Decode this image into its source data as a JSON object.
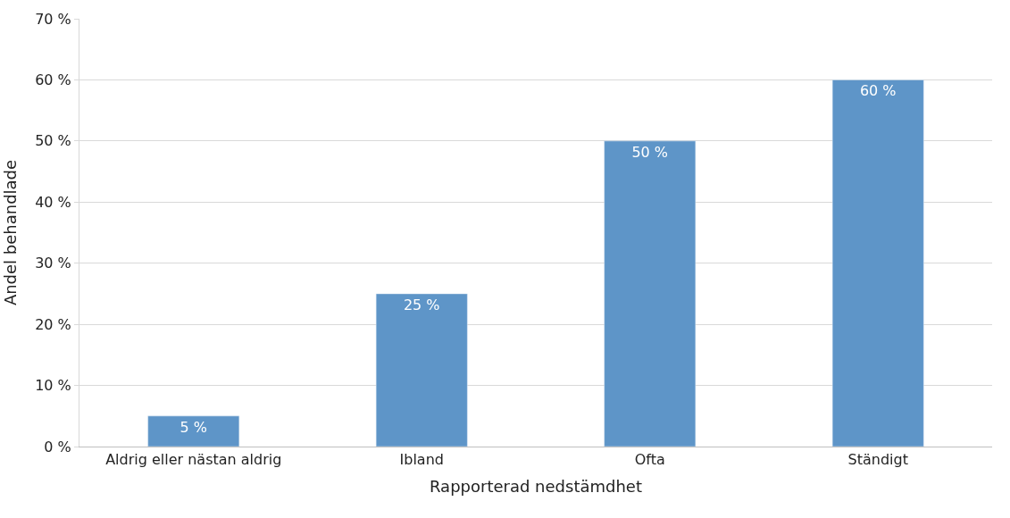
{
  "chart_data": {
    "type": "bar",
    "xlabel": "Rapporterad nedstämdhet",
    "ylabel": "Andel behandlade",
    "categories": [
      "Aldrig eller nästan aldrig",
      "Ibland",
      "Ofta",
      "Ständigt"
    ],
    "values": [
      5,
      25,
      50,
      60
    ],
    "value_labels": [
      "5 %",
      "25 %",
      "50 %",
      "60 %"
    ],
    "color": "#5e95c8",
    "ylim": [
      0,
      70
    ],
    "yticks": [
      {
        "value": 0,
        "label": "0 %"
      },
      {
        "value": 10,
        "label": "10 %"
      },
      {
        "value": 20,
        "label": "20 %"
      },
      {
        "value": 30,
        "label": "30 %"
      },
      {
        "value": 40,
        "label": "40 %"
      },
      {
        "value": 50,
        "label": "50 %"
      },
      {
        "value": 60,
        "label": "60 %"
      },
      {
        "value": 70,
        "label": "70 %"
      }
    ],
    "grid": "y",
    "legend": false
  }
}
